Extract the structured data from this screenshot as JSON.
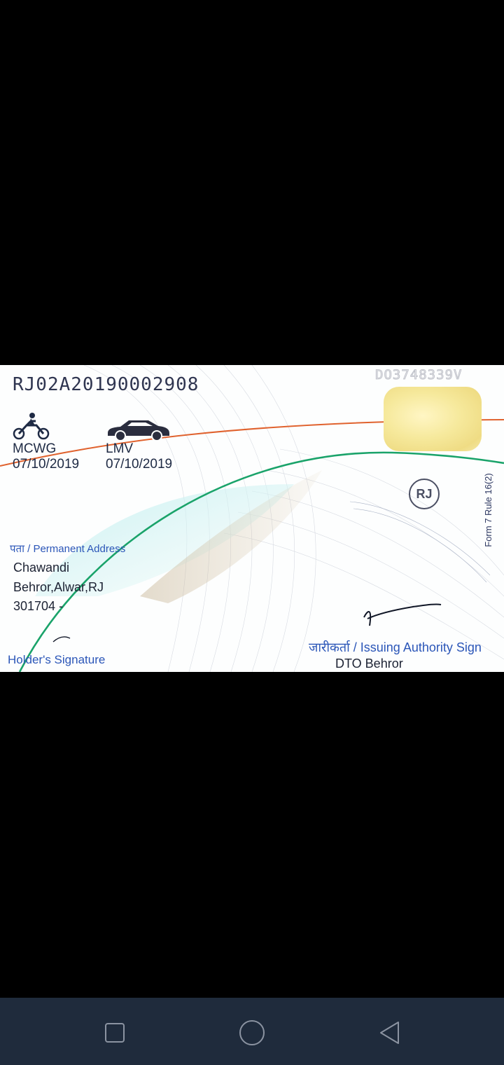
{
  "card": {
    "dl_number": "RJ02A20190002908",
    "serial": "DO3748339V",
    "vehicle_classes": [
      {
        "code": "MCWG",
        "date": "07/10/2019",
        "icon": "motorcycle-icon"
      },
      {
        "code": "LMV",
        "date": "07/10/2019",
        "icon": "car-icon"
      }
    ],
    "state_logo": "RJ",
    "form_rule": "Form 7 Rule 16(2)",
    "address": {
      "heading": "पता / Permanent Address",
      "lines": [
        "Chawandi",
        "Behror,Alwar,RJ",
        "301704 -"
      ]
    },
    "holder_signature_label": "Holder's Signature",
    "issuing_authority_label": "जारीकर्ता / Issuing Authority Sign",
    "issuing_office": "DTO Behror"
  },
  "nav": {
    "buttons": [
      "recents-square-icon",
      "home-circle-icon",
      "back-triangle-icon"
    ]
  },
  "colors": {
    "background": "#000000",
    "navbar": "#1f2b3c",
    "card": "#fdfefe",
    "accent_blue": "#2b56b8",
    "green_curve": "#1aa36a",
    "orange_curve": "#e0622e"
  }
}
